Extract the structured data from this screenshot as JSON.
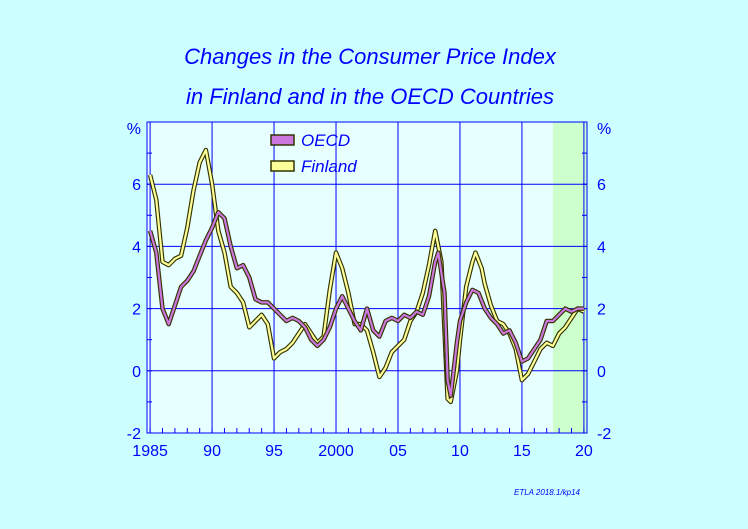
{
  "chart_data": {
    "type": "line",
    "title_line1": "Changes in the Consumer Price Index",
    "title_line2": "in Finland and in the OECD Countries",
    "unit_label": "%",
    "ylim": [
      -2,
      8
    ],
    "xlim": [
      1984.75,
      2020.25
    ],
    "y_ticks": [
      -2,
      0,
      2,
      4,
      6
    ],
    "y_tick_labels": [
      "-2",
      "0",
      "2",
      "4",
      "6"
    ],
    "x_ticks": [
      1985,
      1990,
      1995,
      2000,
      2005,
      2010,
      2015,
      2020
    ],
    "x_tick_labels": [
      "1985",
      "90",
      "95",
      "2000",
      "05",
      "10",
      "15",
      "20"
    ],
    "forecast_start": 2017.5,
    "grid": true,
    "legend_position": "top-left",
    "source": "ETLA 2018.1/kp14",
    "series": [
      {
        "name": "OECD",
        "color": "#cc77dd",
        "points": [
          [
            1985.0,
            4.5
          ],
          [
            1985.5,
            3.8
          ],
          [
            1986.0,
            2.0
          ],
          [
            1986.5,
            1.5
          ],
          [
            1987.0,
            2.1
          ],
          [
            1987.5,
            2.7
          ],
          [
            1988.0,
            2.9
          ],
          [
            1988.5,
            3.2
          ],
          [
            1989.0,
            3.7
          ],
          [
            1989.5,
            4.2
          ],
          [
            1990.0,
            4.6
          ],
          [
            1990.5,
            5.1
          ],
          [
            1991.0,
            4.9
          ],
          [
            1991.5,
            4.0
          ],
          [
            1992.0,
            3.3
          ],
          [
            1992.5,
            3.4
          ],
          [
            1993.0,
            3.0
          ],
          [
            1993.5,
            2.3
          ],
          [
            1994.0,
            2.2
          ],
          [
            1994.5,
            2.2
          ],
          [
            1995.0,
            2.0
          ],
          [
            1995.5,
            1.8
          ],
          [
            1996.0,
            1.6
          ],
          [
            1996.5,
            1.7
          ],
          [
            1997.0,
            1.6
          ],
          [
            1997.5,
            1.4
          ],
          [
            1998.0,
            1.0
          ],
          [
            1998.5,
            0.8
          ],
          [
            1999.0,
            1.0
          ],
          [
            1999.5,
            1.4
          ],
          [
            2000.0,
            2.0
          ],
          [
            2000.5,
            2.4
          ],
          [
            2001.0,
            2.0
          ],
          [
            2001.5,
            1.6
          ],
          [
            2002.0,
            1.3
          ],
          [
            2002.5,
            2.0
          ],
          [
            2003.0,
            1.3
          ],
          [
            2003.5,
            1.1
          ],
          [
            2004.0,
            1.6
          ],
          [
            2004.5,
            1.7
          ],
          [
            2005.0,
            1.6
          ],
          [
            2005.5,
            1.8
          ],
          [
            2006.0,
            1.7
          ],
          [
            2006.5,
            1.9
          ],
          [
            2007.0,
            1.8
          ],
          [
            2007.5,
            2.4
          ],
          [
            2008.0,
            3.5
          ],
          [
            2008.25,
            3.8
          ],
          [
            2008.75,
            2.5
          ],
          [
            2009.0,
            -0.3
          ],
          [
            2009.25,
            -0.8
          ],
          [
            2009.75,
            0.9
          ],
          [
            2010.0,
            1.6
          ],
          [
            2010.5,
            2.2
          ],
          [
            2011.0,
            2.6
          ],
          [
            2011.5,
            2.5
          ],
          [
            2012.0,
            2.0
          ],
          [
            2012.5,
            1.7
          ],
          [
            2013.0,
            1.5
          ],
          [
            2013.5,
            1.2
          ],
          [
            2014.0,
            1.3
          ],
          [
            2014.5,
            0.9
          ],
          [
            2015.0,
            0.3
          ],
          [
            2015.5,
            0.4
          ],
          [
            2016.0,
            0.7
          ],
          [
            2016.5,
            1.0
          ],
          [
            2017.0,
            1.6
          ],
          [
            2017.5,
            1.6
          ],
          [
            2018.0,
            1.8
          ],
          [
            2018.5,
            2.0
          ],
          [
            2019.0,
            1.9
          ],
          [
            2019.5,
            2.0
          ],
          [
            2020.0,
            2.0
          ]
        ]
      },
      {
        "name": "Finland",
        "color": "#ffff99",
        "points": [
          [
            1985.0,
            6.3
          ],
          [
            1985.5,
            5.5
          ],
          [
            1986.0,
            3.5
          ],
          [
            1986.5,
            3.4
          ],
          [
            1987.0,
            3.6
          ],
          [
            1987.5,
            3.7
          ],
          [
            1988.0,
            4.6
          ],
          [
            1988.5,
            5.8
          ],
          [
            1989.0,
            6.7
          ],
          [
            1989.5,
            7.1
          ],
          [
            1990.0,
            6.0
          ],
          [
            1990.5,
            4.5
          ],
          [
            1991.0,
            3.8
          ],
          [
            1991.5,
            2.7
          ],
          [
            1992.0,
            2.5
          ],
          [
            1992.5,
            2.2
          ],
          [
            1993.0,
            1.4
          ],
          [
            1993.5,
            1.6
          ],
          [
            1994.0,
            1.8
          ],
          [
            1994.5,
            1.5
          ],
          [
            1995.0,
            0.4
          ],
          [
            1995.5,
            0.6
          ],
          [
            1996.0,
            0.7
          ],
          [
            1996.5,
            0.9
          ],
          [
            1997.0,
            1.2
          ],
          [
            1997.5,
            1.5
          ],
          [
            1998.0,
            1.2
          ],
          [
            1998.5,
            0.9
          ],
          [
            1999.0,
            1.1
          ],
          [
            1999.5,
            2.6
          ],
          [
            2000.0,
            3.8
          ],
          [
            2000.5,
            3.3
          ],
          [
            2001.0,
            2.5
          ],
          [
            2001.5,
            1.5
          ],
          [
            2002.0,
            1.5
          ],
          [
            2002.5,
            1.3
          ],
          [
            2003.0,
            0.6
          ],
          [
            2003.5,
            -0.2
          ],
          [
            2004.0,
            0.1
          ],
          [
            2004.5,
            0.6
          ],
          [
            2005.0,
            0.8
          ],
          [
            2005.5,
            1.0
          ],
          [
            2006.0,
            1.6
          ],
          [
            2006.5,
            1.9
          ],
          [
            2007.0,
            2.5
          ],
          [
            2007.5,
            3.4
          ],
          [
            2008.0,
            4.5
          ],
          [
            2008.5,
            3.5
          ],
          [
            2009.0,
            -0.9
          ],
          [
            2009.25,
            -1.0
          ],
          [
            2009.75,
            0.0
          ],
          [
            2010.0,
            1.0
          ],
          [
            2010.5,
            2.7
          ],
          [
            2011.0,
            3.5
          ],
          [
            2011.25,
            3.8
          ],
          [
            2011.75,
            3.3
          ],
          [
            2012.0,
            2.8
          ],
          [
            2012.5,
            2.1
          ],
          [
            2013.0,
            1.6
          ],
          [
            2013.5,
            1.5
          ],
          [
            2014.0,
            1.2
          ],
          [
            2014.5,
            0.7
          ],
          [
            2015.0,
            -0.3
          ],
          [
            2015.5,
            -0.1
          ],
          [
            2016.0,
            0.3
          ],
          [
            2016.5,
            0.7
          ],
          [
            2017.0,
            0.9
          ],
          [
            2017.5,
            0.8
          ],
          [
            2018.0,
            1.2
          ],
          [
            2018.5,
            1.4
          ],
          [
            2019.0,
            1.7
          ],
          [
            2019.5,
            2.0
          ],
          [
            2020.0,
            1.9
          ]
        ]
      }
    ]
  },
  "colors": {
    "background": "#ccffff",
    "plot_background": "#e8ffff",
    "forecast_area": "#ccffcc",
    "text": "#0000ff",
    "grid": "#0000ff",
    "line_outline": "#333300"
  }
}
